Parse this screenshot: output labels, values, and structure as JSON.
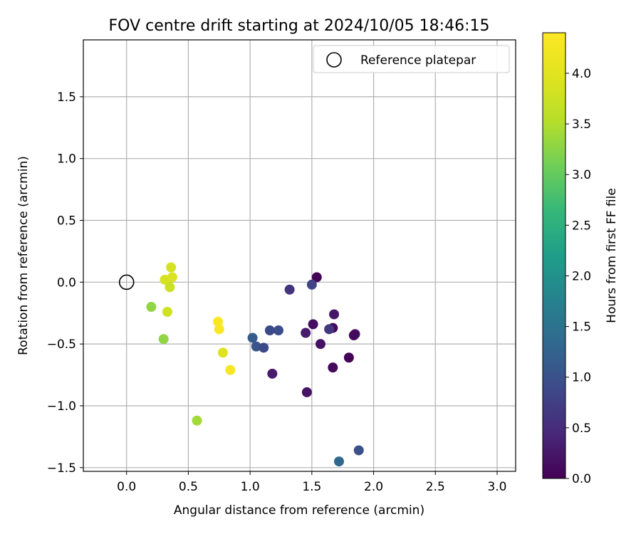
{
  "chart_data": {
    "type": "scatter",
    "title": "FOV centre drift starting at 2024/10/05 18:46:15",
    "xlabel": "Angular distance from reference (arcmin)",
    "ylabel": "Rotation from reference (arcmin)",
    "xlim": [
      -0.35,
      3.15
    ],
    "ylim": [
      -1.53,
      1.96
    ],
    "xticks": [
      0.0,
      0.5,
      1.0,
      1.5,
      2.0,
      2.5,
      3.0
    ],
    "xtick_labels": [
      "0.0",
      "0.5",
      "1.0",
      "1.5",
      "2.0",
      "2.5",
      "3.0"
    ],
    "yticks": [
      -1.5,
      -1.0,
      -0.5,
      0.0,
      0.5,
      1.0,
      1.5
    ],
    "ytick_labels": [
      "−1.5",
      "−1.0",
      "−0.5",
      "0.0",
      "0.5",
      "1.0",
      "1.5"
    ],
    "grid": true,
    "legend": {
      "placement": "top-right",
      "label": "Reference platepar"
    },
    "reference_point": {
      "x": 0.0,
      "y": 0.0
    },
    "colorbar": {
      "label": "Hours from first FF file",
      "colormap": "viridis",
      "range": [
        0.0,
        4.4
      ],
      "ticks": [
        0.0,
        0.5,
        1.0,
        1.5,
        2.0,
        2.5,
        3.0,
        3.5,
        4.0
      ],
      "tick_labels": [
        "0.0",
        "0.5",
        "1.0",
        "1.5",
        "2.0",
        "2.5",
        "3.0",
        "3.5",
        "4.0"
      ]
    },
    "points": [
      {
        "x": 1.54,
        "y": 0.04,
        "c": 0.05
      },
      {
        "x": 1.5,
        "y": -0.02,
        "c": 0.8
      },
      {
        "x": 1.32,
        "y": -0.06,
        "c": 0.6
      },
      {
        "x": 1.68,
        "y": -0.26,
        "c": 0.25
      },
      {
        "x": 1.51,
        "y": -0.34,
        "c": 0.15
      },
      {
        "x": 1.67,
        "y": -0.37,
        "c": 0.1
      },
      {
        "x": 1.64,
        "y": -0.38,
        "c": 0.65
      },
      {
        "x": 1.45,
        "y": -0.41,
        "c": 0.3
      },
      {
        "x": 1.85,
        "y": -0.42,
        "c": 0.2
      },
      {
        "x": 1.84,
        "y": -0.43,
        "c": 0.1
      },
      {
        "x": 1.57,
        "y": -0.5,
        "c": 0.2
      },
      {
        "x": 1.8,
        "y": -0.61,
        "c": 0.02
      },
      {
        "x": 1.67,
        "y": -0.69,
        "c": 0.1
      },
      {
        "x": 1.18,
        "y": -0.74,
        "c": 0.3
      },
      {
        "x": 1.46,
        "y": -0.89,
        "c": 0.2
      },
      {
        "x": 1.23,
        "y": -0.39,
        "c": 0.95
      },
      {
        "x": 1.16,
        "y": -0.39,
        "c": 0.9
      },
      {
        "x": 1.02,
        "y": -0.45,
        "c": 1.15
      },
      {
        "x": 1.05,
        "y": -0.52,
        "c": 1.05
      },
      {
        "x": 1.11,
        "y": -0.53,
        "c": 0.9
      },
      {
        "x": 1.88,
        "y": -1.36,
        "c": 1.0
      },
      {
        "x": 1.72,
        "y": -1.45,
        "c": 1.3
      },
      {
        "x": 0.2,
        "y": -0.2,
        "c": 3.3
      },
      {
        "x": 0.3,
        "y": -0.46,
        "c": 3.3
      },
      {
        "x": 0.57,
        "y": -1.12,
        "c": 3.4
      },
      {
        "x": 0.33,
        "y": -0.24,
        "c": 3.8
      },
      {
        "x": 0.36,
        "y": 0.12,
        "c": 3.85
      },
      {
        "x": 0.31,
        "y": 0.02,
        "c": 3.85
      },
      {
        "x": 0.37,
        "y": 0.04,
        "c": 3.9
      },
      {
        "x": 0.35,
        "y": -0.04,
        "c": 3.75
      },
      {
        "x": 0.74,
        "y": -0.32,
        "c": 4.35
      },
      {
        "x": 0.75,
        "y": -0.38,
        "c": 4.35
      },
      {
        "x": 0.78,
        "y": -0.57,
        "c": 3.95
      },
      {
        "x": 0.84,
        "y": -0.71,
        "c": 4.3
      }
    ]
  }
}
